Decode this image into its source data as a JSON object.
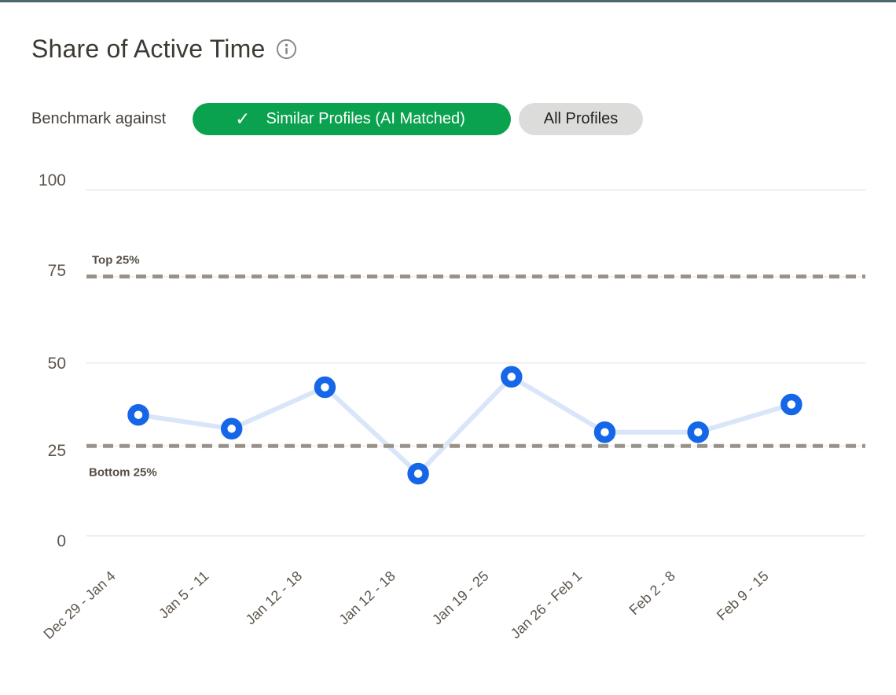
{
  "header": {
    "title": "Share of Active Time",
    "info_icon": "info-icon"
  },
  "benchmark": {
    "label": "Benchmark against",
    "options": [
      {
        "label": "Similar Profiles (AI Matched)",
        "selected": true,
        "icon": "check-icon"
      },
      {
        "label": "All Profiles",
        "selected": false
      }
    ]
  },
  "icons": {
    "check": "✓",
    "info": "i"
  },
  "chart_data": {
    "type": "line",
    "title": "Share of Active Time",
    "categories": [
      "Dec 29 - Jan 4",
      "Jan 5 - 11",
      "Jan 12 - 18",
      "Jan 12 - 18",
      "Jan 19 - 25",
      "Jan 26 - Feb 1",
      "Feb 2 - 8",
      "Feb 9 - 15"
    ],
    "values": [
      35,
      31,
      43,
      18,
      46,
      30,
      30,
      38
    ],
    "benchmark_lines": [
      {
        "label": "Top 25%",
        "value": 75,
        "label_position": "above"
      },
      {
        "label": "Bottom 25%",
        "value": 26,
        "label_position": "below"
      }
    ],
    "xlabel": "",
    "ylabel": "",
    "ylim": [
      0,
      100
    ],
    "yticks": [
      0,
      25,
      50,
      75,
      100
    ],
    "grid": true,
    "legend": "none",
    "colors": {
      "point": "#1567e8",
      "line": "#d9e6f9",
      "benchmark": "#99928a",
      "gridline": "#e8e6e3",
      "selected_pill": "#0ba24f",
      "unselected_pill": "#dcdcda",
      "topbar": "#4d656d"
    }
  }
}
